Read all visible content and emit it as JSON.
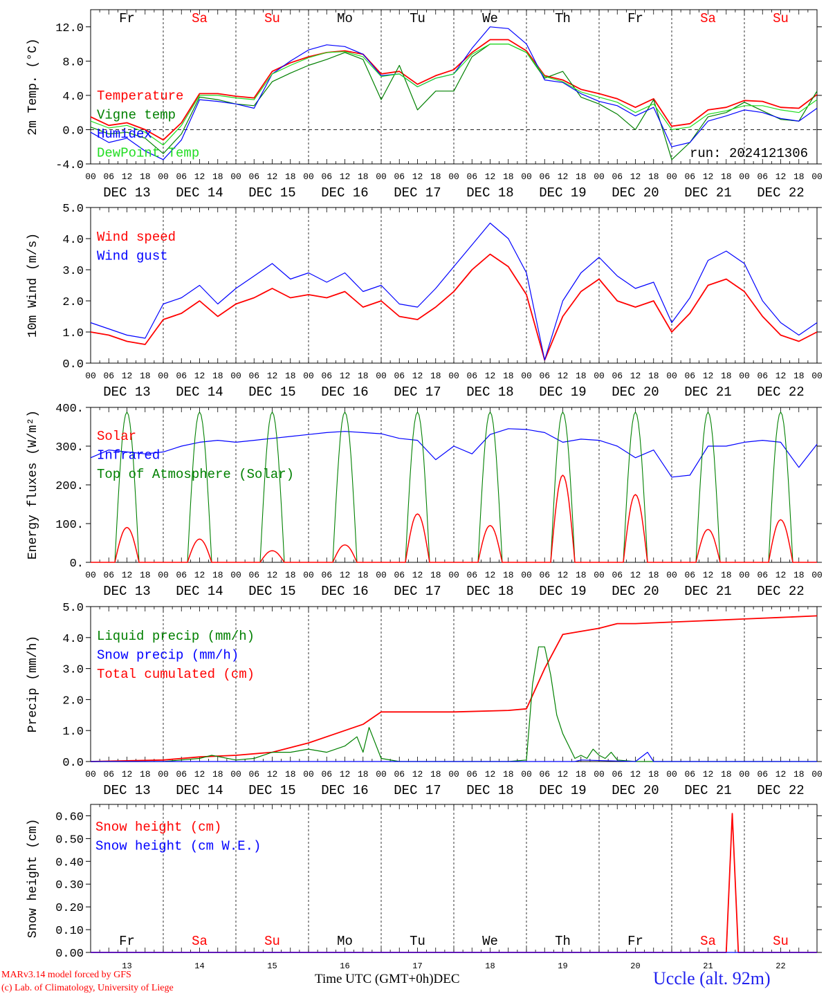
{
  "run_label": "run: 2024121306",
  "time_axis": {
    "xlabel": "Time UTC (GMT+0h)",
    "month": "DEC",
    "days": [
      "13",
      "14",
      "15",
      "16",
      "17",
      "18",
      "19",
      "20",
      "21",
      "22"
    ],
    "date_labels": [
      "DEC 13",
      "DEC 14",
      "DEC 15",
      "DEC 16",
      "DEC 17",
      "DEC 18",
      "DEC 19",
      "DEC 20",
      "DEC 21",
      "DEC 22"
    ],
    "weekdays": [
      "Fr",
      "Sa",
      "Su",
      "Mo",
      "Tu",
      "We",
      "Th",
      "Fr",
      "Sa",
      "Su"
    ],
    "weekend": [
      false,
      true,
      true,
      false,
      false,
      false,
      false,
      false,
      true,
      true
    ],
    "hour_ticks": [
      "00",
      "06",
      "12",
      "18"
    ],
    "end_label": "00"
  },
  "colors": {
    "red": "#ff0000",
    "green": "#008000",
    "blue": "#0000ff",
    "lightgreen": "#22dd22",
    "weekend": "#ff0000",
    "weekday": "#000000"
  },
  "footer": {
    "credit1": "MARv3.14 model forced by GFS",
    "credit2": "(c) Lab. of Climatology, University of Liege",
    "station": "Uccle (alt. 92m)"
  },
  "chart_data": [
    {
      "type": "line",
      "ylabel": "2m Temp. (°C)",
      "ylim": [
        -4,
        14
      ],
      "yticks": [
        "-4.0",
        "0.0",
        "4.0",
        "8.0",
        "12.0"
      ],
      "ytick_values": [
        -4,
        0,
        4,
        8,
        12
      ],
      "zero_line": true,
      "x_unit": "hours since DEC 13 00 UTC",
      "legend": [
        "Temperature",
        "Vigne temp",
        "Humidex",
        "DewPoint Temp"
      ],
      "series": [
        {
          "name": "Temperature",
          "color": "red",
          "x": [
            0,
            6,
            12,
            18,
            24,
            30,
            36,
            42,
            48,
            54,
            60,
            66,
            72,
            78,
            84,
            90,
            96,
            102,
            108,
            114,
            120,
            126,
            132,
            138,
            144,
            150,
            156,
            162,
            168,
            174,
            180,
            186,
            192,
            198,
            204,
            210,
            216,
            222,
            228,
            234,
            240
          ],
          "values": [
            1.5,
            0.5,
            0.8,
            0.0,
            -1.2,
            0.8,
            4.2,
            4.2,
            3.9,
            3.7,
            6.8,
            7.8,
            8.5,
            9.0,
            9.2,
            8.8,
            6.5,
            6.8,
            5.3,
            6.3,
            7.0,
            9.0,
            10.5,
            10.5,
            9.2,
            6.3,
            5.8,
            4.7,
            4.2,
            3.6,
            2.6,
            3.6,
            0.4,
            0.7,
            2.3,
            2.6,
            3.4,
            3.3,
            2.6,
            2.5,
            4.1
          ]
        },
        {
          "name": "Vigne temp",
          "color": "green",
          "x": [
            0,
            6,
            12,
            18,
            24,
            30,
            36,
            42,
            48,
            54,
            60,
            66,
            72,
            78,
            84,
            90,
            96,
            102,
            108,
            114,
            120,
            126,
            132,
            138,
            144,
            150,
            156,
            162,
            168,
            174,
            180,
            186,
            192,
            198,
            204,
            210,
            216,
            222,
            228,
            234,
            240
          ],
          "values": [
            0.3,
            -0.5,
            -0.3,
            -1.0,
            -2.8,
            -0.5,
            3.8,
            3.5,
            3.0,
            2.8,
            5.6,
            6.6,
            7.5,
            8.2,
            9.0,
            8.2,
            3.5,
            7.5,
            2.3,
            4.5,
            4.5,
            8.5,
            10.0,
            10.0,
            9.0,
            6.0,
            6.8,
            3.8,
            3.0,
            1.8,
            0.0,
            3.5,
            -3.5,
            -1.5,
            1.5,
            2.0,
            3.2,
            2.2,
            1.2,
            1.0,
            4.5
          ]
        },
        {
          "name": "Humidex",
          "color": "blue",
          "x": [
            0,
            6,
            12,
            18,
            24,
            30,
            36,
            42,
            48,
            54,
            60,
            66,
            72,
            78,
            84,
            90,
            96,
            102,
            108,
            114,
            120,
            126,
            132,
            138,
            144,
            150,
            156,
            162,
            168,
            174,
            180,
            186,
            192,
            198,
            204,
            210,
            216,
            222,
            228,
            234,
            240
          ],
          "values": [
            -0.3,
            -1.5,
            -1.0,
            -2.5,
            -3.5,
            -1.2,
            3.5,
            3.3,
            3.0,
            2.5,
            6.5,
            8.0,
            9.3,
            9.9,
            9.7,
            8.8,
            6.3,
            6.5,
            5.0,
            6.0,
            6.5,
            9.5,
            12.0,
            11.8,
            10.0,
            5.8,
            5.5,
            4.2,
            3.3,
            2.8,
            1.6,
            2.6,
            -2.0,
            -1.5,
            1.0,
            1.6,
            2.3,
            2.0,
            1.3,
            1.0,
            2.5
          ]
        },
        {
          "name": "DewPoint Temp",
          "color": "lightgreen",
          "x": [
            0,
            6,
            12,
            18,
            24,
            30,
            36,
            42,
            48,
            54,
            60,
            66,
            72,
            78,
            84,
            90,
            96,
            102,
            108,
            114,
            120,
            126,
            132,
            138,
            144,
            150,
            156,
            162,
            168,
            174,
            180,
            186,
            192,
            198,
            204,
            210,
            216,
            222,
            228,
            234,
            240
          ],
          "values": [
            1.0,
            0.2,
            0.5,
            -0.3,
            -1.8,
            0.5,
            4.0,
            4.0,
            3.7,
            3.5,
            6.5,
            7.5,
            8.4,
            9.0,
            9.1,
            8.5,
            6.2,
            6.5,
            5.0,
            6.0,
            6.5,
            8.8,
            10.0,
            10.0,
            9.0,
            6.2,
            5.6,
            4.4,
            3.8,
            3.2,
            2.0,
            3.0,
            0.0,
            0.3,
            1.8,
            2.2,
            2.8,
            2.8,
            2.3,
            2.0,
            3.5
          ]
        }
      ]
    },
    {
      "type": "line",
      "ylabel": "10m Wind (m/s)",
      "ylim": [
        0,
        5
      ],
      "yticks": [
        "0.0",
        "1.0",
        "2.0",
        "3.0",
        "4.0",
        "5.0"
      ],
      "ytick_values": [
        0,
        1,
        2,
        3,
        4,
        5
      ],
      "x_unit": "hours since DEC 13 00 UTC",
      "legend": [
        "Wind speed",
        "Wind gust"
      ],
      "series": [
        {
          "name": "Wind speed",
          "color": "red",
          "x": [
            0,
            6,
            12,
            18,
            24,
            30,
            36,
            42,
            48,
            54,
            60,
            66,
            72,
            78,
            84,
            90,
            96,
            102,
            108,
            114,
            120,
            126,
            132,
            138,
            144,
            150,
            156,
            162,
            168,
            174,
            180,
            186,
            192,
            198,
            204,
            210,
            216,
            222,
            228,
            234,
            240
          ],
          "values": [
            1.0,
            0.9,
            0.7,
            0.6,
            1.4,
            1.6,
            2.0,
            1.5,
            1.9,
            2.1,
            2.4,
            2.1,
            2.2,
            2.1,
            2.3,
            1.8,
            2.0,
            1.5,
            1.4,
            1.8,
            2.3,
            3.0,
            3.5,
            3.1,
            2.2,
            0.1,
            1.5,
            2.3,
            2.7,
            2.0,
            1.8,
            2.0,
            1.0,
            1.6,
            2.5,
            2.7,
            2.3,
            1.5,
            0.9,
            0.7,
            1.0
          ]
        },
        {
          "name": "Wind gust",
          "color": "blue",
          "x": [
            0,
            6,
            12,
            18,
            24,
            30,
            36,
            42,
            48,
            54,
            60,
            66,
            72,
            78,
            84,
            90,
            96,
            102,
            108,
            114,
            120,
            126,
            132,
            138,
            144,
            150,
            156,
            162,
            168,
            174,
            180,
            186,
            192,
            198,
            204,
            210,
            216,
            222,
            228,
            234,
            240
          ],
          "values": [
            1.3,
            1.1,
            0.9,
            0.8,
            1.9,
            2.1,
            2.5,
            1.9,
            2.4,
            2.8,
            3.2,
            2.7,
            2.9,
            2.6,
            2.9,
            2.3,
            2.5,
            1.9,
            1.8,
            2.4,
            3.1,
            3.8,
            4.5,
            4.0,
            2.9,
            0.1,
            2.0,
            2.9,
            3.4,
            2.8,
            2.4,
            2.6,
            1.3,
            2.1,
            3.3,
            3.6,
            3.2,
            2.0,
            1.3,
            0.9,
            1.3
          ]
        }
      ]
    },
    {
      "type": "line",
      "ylabel": "Energy fluxes (W/m²)",
      "ylim": [
        0,
        400
      ],
      "yticks": [
        "0.",
        "100.",
        "200.",
        "300.",
        "400."
      ],
      "ytick_values": [
        0,
        100,
        200,
        300,
        400
      ],
      "x_unit": "hours since DEC 13 00 UTC",
      "legend": [
        "Solar",
        "Infrared",
        "Top of Atmosphere (Solar)"
      ],
      "series": [
        {
          "name": "Infrared",
          "color": "blue",
          "x": [
            0,
            6,
            12,
            18,
            24,
            30,
            36,
            42,
            48,
            54,
            60,
            66,
            72,
            78,
            84,
            90,
            96,
            102,
            108,
            114,
            120,
            126,
            132,
            138,
            144,
            150,
            156,
            162,
            168,
            174,
            180,
            186,
            192,
            198,
            204,
            210,
            216,
            222,
            228,
            234,
            240
          ],
          "values": [
            270,
            290,
            285,
            280,
            285,
            300,
            310,
            315,
            310,
            315,
            320,
            325,
            330,
            335,
            338,
            335,
            332,
            320,
            315,
            265,
            300,
            280,
            330,
            345,
            343,
            335,
            310,
            318,
            315,
            300,
            270,
            290,
            220,
            225,
            300,
            300,
            310,
            315,
            310,
            245,
            305
          ]
        },
        {
          "name": "Top of Atmosphere (Solar)",
          "color": "green",
          "peak": 388,
          "day_start_hour": 8,
          "day_end_hour": 16
        },
        {
          "name": "Solar",
          "color": "red",
          "peak_per_day": [
            90,
            60,
            30,
            45,
            125,
            95,
            225,
            175,
            85,
            110
          ],
          "day_start_hour": 8,
          "day_end_hour": 16
        }
      ]
    },
    {
      "type": "line",
      "ylabel": "Precip (mm/h)",
      "ylim": [
        0,
        5
      ],
      "yticks": [
        "0.0",
        "1.0",
        "2.0",
        "3.0",
        "4.0",
        "5.0"
      ],
      "ytick_values": [
        0,
        1,
        2,
        3,
        4,
        5
      ],
      "x_unit": "hours since DEC 13 00 UTC",
      "legend": [
        "Liquid precip (mm/h)",
        "Snow precip (mm/h)",
        "Total cumulated (cm)"
      ],
      "series": [
        {
          "name": "Total cumulated (cm)",
          "color": "red",
          "x": [
            0,
            24,
            36,
            48,
            60,
            72,
            84,
            90,
            96,
            120,
            138,
            144,
            150,
            156,
            168,
            174,
            180,
            192,
            204,
            216,
            228,
            240
          ],
          "values": [
            0,
            0.05,
            0.15,
            0.2,
            0.3,
            0.6,
            1.0,
            1.2,
            1.6,
            1.6,
            1.65,
            1.7,
            3.0,
            4.1,
            4.3,
            4.45,
            4.45,
            4.5,
            4.55,
            4.6,
            4.65,
            4.7
          ]
        },
        {
          "name": "Liquid precip (mm/h)",
          "color": "green",
          "x": [
            0,
            24,
            36,
            40,
            48,
            54,
            60,
            66,
            72,
            78,
            84,
            88,
            90,
            92,
            96,
            102,
            120,
            138,
            144,
            146,
            148,
            150,
            152,
            154,
            156,
            158,
            160,
            162,
            164,
            166,
            168,
            170,
            172,
            174,
            180,
            186,
            192,
            240
          ],
          "values": [
            0,
            0,
            0.1,
            0.2,
            0.05,
            0.1,
            0.3,
            0.3,
            0.4,
            0.3,
            0.5,
            0.8,
            0.3,
            1.1,
            0.1,
            0,
            0,
            0,
            0.05,
            2.5,
            3.7,
            3.7,
            2.8,
            1.5,
            0.9,
            0.5,
            0.1,
            0.2,
            0.1,
            0.4,
            0.2,
            0.1,
            0.3,
            0.05,
            0,
            0,
            0,
            0
          ]
        },
        {
          "name": "Snow precip (mm/h)",
          "color": "blue",
          "x": [
            0,
            160,
            162,
            180,
            184,
            186,
            240
          ],
          "values": [
            0,
            0,
            0.05,
            0,
            0.3,
            0,
            0
          ]
        }
      ]
    },
    {
      "type": "line",
      "ylabel": "Snow height (cm)",
      "ylim": [
        0,
        0.65
      ],
      "yticks": [
        "0.00",
        "0.10",
        "0.20",
        "0.30",
        "0.40",
        "0.50",
        "0.60"
      ],
      "ytick_values": [
        0,
        0.1,
        0.2,
        0.3,
        0.4,
        0.5,
        0.6
      ],
      "x_unit": "hours since DEC 13 00 UTC",
      "legend": [
        "Snow height (cm)",
        "Snow height (cm W.E.)"
      ],
      "series": [
        {
          "name": "Snow height (cm)",
          "color": "red",
          "x": [
            0,
            210,
            212,
            214,
            240
          ],
          "values": [
            0,
            0,
            0.61,
            0,
            0
          ]
        },
        {
          "name": "Snow height (cm W.E.)",
          "color": "blue",
          "x": [
            0,
            240
          ],
          "values": [
            0,
            0
          ]
        }
      ]
    }
  ]
}
